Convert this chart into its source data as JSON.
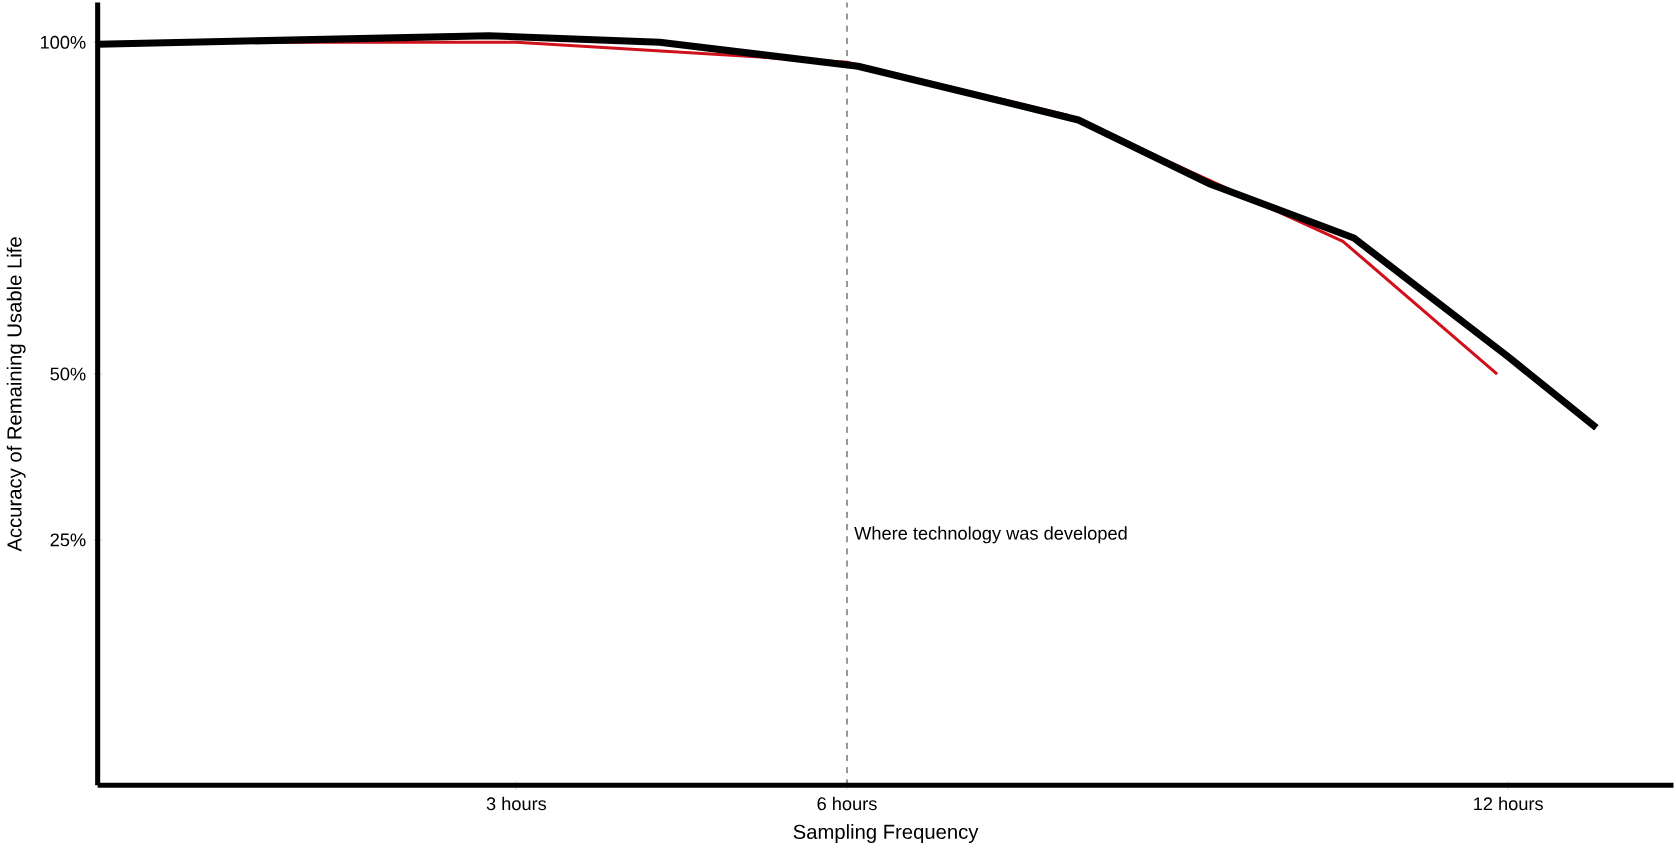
{
  "chart_data": {
    "type": "line",
    "xlabel": "Sampling Frequency",
    "ylabel": "Accuracy of Remaining Usable Life",
    "xlim": [
      -0.8,
      13.5
    ],
    "ylim": [
      -12,
      106
    ],
    "xticks": [
      {
        "value": 3,
        "label": "3 hours"
      },
      {
        "value": 6,
        "label": "6 hours"
      },
      {
        "value": 12,
        "label": "12 hours"
      }
    ],
    "yticks": [
      {
        "value": 25,
        "label": "25%"
      },
      {
        "value": 50,
        "label": "50%"
      },
      {
        "value": 100,
        "label": "100%"
      }
    ],
    "series": [
      {
        "color": "#d0101a",
        "x": [
          0,
          3,
          6,
          8,
          10.5,
          11.9
        ],
        "values": [
          100,
          100,
          97,
          89,
          70,
          50
        ]
      },
      {
        "color": "#000000",
        "x": [
          -0.8,
          2.75,
          4.3,
          6.1,
          8.1,
          9.3,
          10.6,
          12,
          12.8
        ],
        "values": [
          99.7,
          101,
          100,
          96.4,
          88.3,
          78.6,
          70.5,
          52.6,
          41.9
        ]
      }
    ],
    "ref_lines": [
      {
        "axis": "x",
        "value": 6,
        "label": "Where technology was developed",
        "line_style": "dashed",
        "color": "#000000"
      }
    ],
    "grid": false,
    "marker": "none",
    "line_style": "solid"
  }
}
